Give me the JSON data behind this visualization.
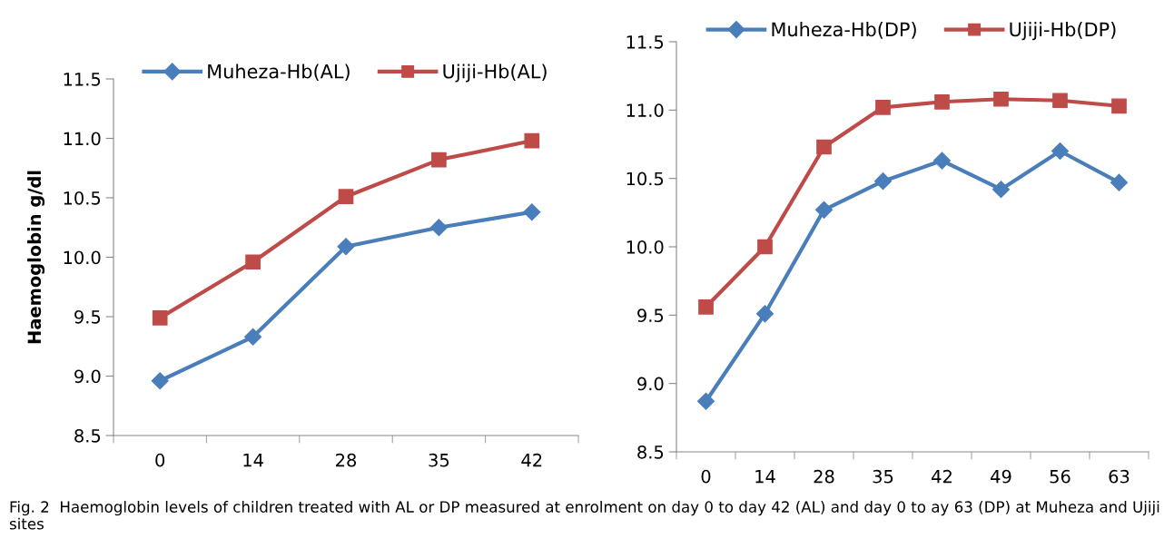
{
  "chart_data": [
    {
      "type": "line",
      "ylabel": "Haemoglobin g/dl",
      "categories": [
        "0",
        "14",
        "28",
        "35",
        "42"
      ],
      "ylim": [
        8.5,
        11.5
      ],
      "yticks": [
        {
          "value": 8.5,
          "label": "8.5"
        },
        {
          "value": 9.0,
          "label": "9.0"
        },
        {
          "value": 9.5,
          "label": "9.5"
        },
        {
          "value": 10.0,
          "label": "10.0"
        },
        {
          "value": 10.5,
          "label": "10.5"
        },
        {
          "value": 11.0,
          "label": "11.0"
        },
        {
          "value": 11.5,
          "label": "11.5"
        }
      ],
      "legend": "top",
      "grid": false,
      "series": [
        {
          "name": "Muheza-Hb(AL)",
          "color": "#4a7ebb",
          "marker": "diamond",
          "values": [
            8.96,
            9.33,
            10.09,
            10.25,
            10.38
          ]
        },
        {
          "name": "Ujiji-Hb(AL)",
          "color": "#be4b48",
          "marker": "square",
          "values": [
            9.49,
            9.96,
            10.51,
            10.82,
            10.98
          ]
        }
      ],
      "annotations": [
        "Fig. 2  Haemoglobin levels of children treated with AL or DP measured at enrolment on day 0 to day 42 (AL) and day 0 to ay 63 (DP) at Muheza and Ujiji sites"
      ]
    },
    {
      "type": "line",
      "categories": [
        "0",
        "14",
        "28",
        "35",
        "42",
        "49",
        "56",
        "63"
      ],
      "ylim": [
        8.5,
        11.5
      ],
      "yticks": [
        {
          "value": 8.5,
          "label": "8.5"
        },
        {
          "value": 9.0,
          "label": "9.0"
        },
        {
          "value": 9.5,
          "label": "9.5"
        },
        {
          "value": 10.0,
          "label": "10.0"
        },
        {
          "value": 10.5,
          "label": "10.5"
        },
        {
          "value": 11.0,
          "label": "11.0"
        },
        {
          "value": 11.5,
          "label": "11.5"
        }
      ],
      "legend": "top",
      "grid": false,
      "series": [
        {
          "name": "Muheza-Hb(DP)",
          "color": "#4a7ebb",
          "marker": "diamond",
          "values": [
            8.87,
            9.51,
            10.27,
            10.48,
            10.63,
            10.42,
            10.7,
            10.47
          ]
        },
        {
          "name": "Ujiji-Hb(DP)",
          "color": "#be4b48",
          "marker": "square",
          "values": [
            9.56,
            10.0,
            10.73,
            11.02,
            11.06,
            11.08,
            11.07,
            11.03
          ]
        }
      ]
    }
  ]
}
